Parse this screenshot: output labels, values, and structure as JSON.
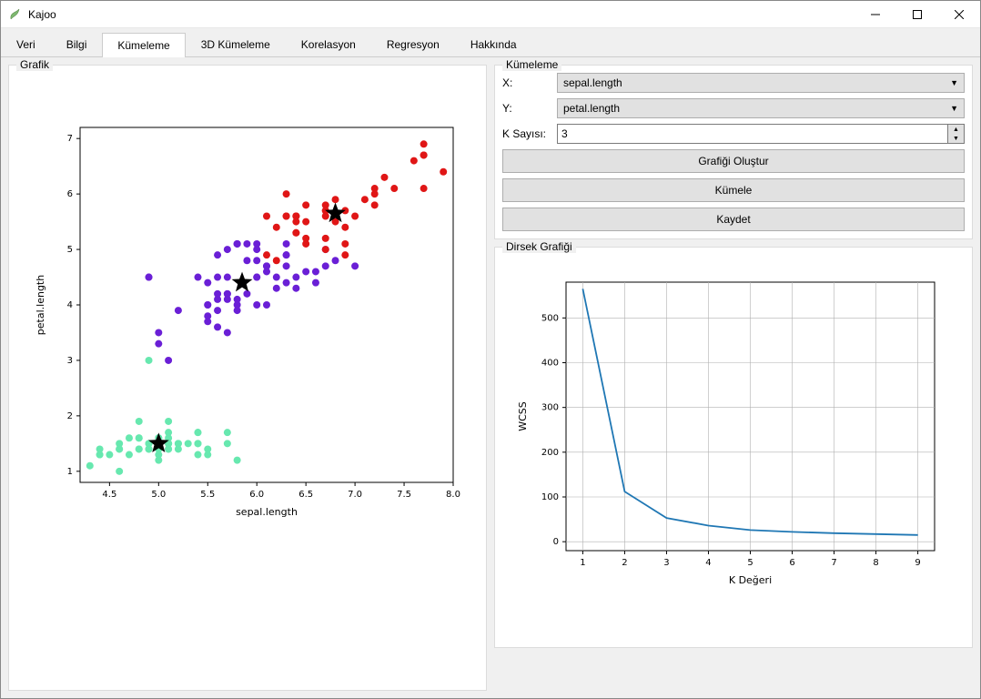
{
  "window": {
    "title": "Kajoo"
  },
  "tabs": [
    "Veri",
    "Bilgi",
    "Kümeleme",
    "3D Kümeleme",
    "Korelasyon",
    "Regresyon",
    "Hakkında"
  ],
  "active_tab": "Kümeleme",
  "panels": {
    "grafik": {
      "title": "Grafik"
    },
    "kumeleme": {
      "title": "Kümeleme",
      "labels": {
        "x": "X:",
        "y": "Y:",
        "k": "K Sayısı:"
      },
      "x_value": "sepal.length",
      "y_value": "petal.length",
      "k_value": "3",
      "buttons": {
        "create": "Grafiği Oluştur",
        "cluster": "Kümele",
        "save": "Kaydet"
      }
    },
    "dirsek": {
      "title": "Dirsek Grafiği"
    }
  },
  "scatter": {
    "type": "scatter",
    "xlabel": "sepal.length",
    "ylabel": "petal.length",
    "label_fontsize": 11,
    "tick_fontsize": 10,
    "xlim": [
      4.2,
      8.0
    ],
    "ylim": [
      0.8,
      7.2
    ],
    "xticks": [
      4.5,
      5.0,
      5.5,
      6.0,
      6.5,
      7.0,
      7.5,
      8.0
    ],
    "yticks": [
      1,
      2,
      3,
      4,
      5,
      6,
      7
    ],
    "background_color": "#ffffff",
    "axes_color": "#000000",
    "marker_size": 4,
    "clusters": [
      {
        "color": "#67e8af",
        "points": [
          [
            5.1,
            1.4
          ],
          [
            4.9,
            1.4
          ],
          [
            4.7,
            1.3
          ],
          [
            4.6,
            1.5
          ],
          [
            5.0,
            1.4
          ],
          [
            5.4,
            1.7
          ],
          [
            4.6,
            1.4
          ],
          [
            5.0,
            1.5
          ],
          [
            4.4,
            1.4
          ],
          [
            4.9,
            1.5
          ],
          [
            5.4,
            1.5
          ],
          [
            4.8,
            1.6
          ],
          [
            4.8,
            1.4
          ],
          [
            4.3,
            1.1
          ],
          [
            5.8,
            1.2
          ],
          [
            5.7,
            1.5
          ],
          [
            5.4,
            1.3
          ],
          [
            5.1,
            1.4
          ],
          [
            5.7,
            1.7
          ],
          [
            5.1,
            1.5
          ],
          [
            5.4,
            1.7
          ],
          [
            5.1,
            1.5
          ],
          [
            4.6,
            1.0
          ],
          [
            5.1,
            1.7
          ],
          [
            4.8,
            1.9
          ],
          [
            5.0,
            1.6
          ],
          [
            5.0,
            1.6
          ],
          [
            5.2,
            1.5
          ],
          [
            5.2,
            1.4
          ],
          [
            4.7,
            1.6
          ],
          [
            4.8,
            1.6
          ],
          [
            5.4,
            1.5
          ],
          [
            5.2,
            1.5
          ],
          [
            5.5,
            1.4
          ],
          [
            4.9,
            1.5
          ],
          [
            5.0,
            1.2
          ],
          [
            5.5,
            1.3
          ],
          [
            4.9,
            1.4
          ],
          [
            4.4,
            1.3
          ],
          [
            5.1,
            1.5
          ],
          [
            5.0,
            1.3
          ],
          [
            4.5,
            1.3
          ],
          [
            4.4,
            1.3
          ],
          [
            5.0,
            1.6
          ],
          [
            5.1,
            1.9
          ],
          [
            4.8,
            1.4
          ],
          [
            5.1,
            1.6
          ],
          [
            4.6,
            1.4
          ],
          [
            5.3,
            1.5
          ],
          [
            5.0,
            1.4
          ],
          [
            4.9,
            3.0
          ]
        ]
      },
      {
        "color": "#6a1fd6",
        "points": [
          [
            7.0,
            4.7
          ],
          [
            6.4,
            4.5
          ],
          [
            5.5,
            4.0
          ],
          [
            6.5,
            4.6
          ],
          [
            5.7,
            4.5
          ],
          [
            6.3,
            4.7
          ],
          [
            4.9,
            4.5
          ],
          [
            6.6,
            4.6
          ],
          [
            5.2,
            3.9
          ],
          [
            5.0,
            3.5
          ],
          [
            5.9,
            4.2
          ],
          [
            6.0,
            4.0
          ],
          [
            6.1,
            4.7
          ],
          [
            5.6,
            3.6
          ],
          [
            5.6,
            4.5
          ],
          [
            5.8,
            4.1
          ],
          [
            6.2,
            4.5
          ],
          [
            5.6,
            3.9
          ],
          [
            5.9,
            4.8
          ],
          [
            6.1,
            4.0
          ],
          [
            6.3,
            4.9
          ],
          [
            6.1,
            4.7
          ],
          [
            6.4,
            4.3
          ],
          [
            6.6,
            4.4
          ],
          [
            6.8,
            4.8
          ],
          [
            6.7,
            5.0
          ],
          [
            6.0,
            4.5
          ],
          [
            5.7,
            3.5
          ],
          [
            5.5,
            3.8
          ],
          [
            5.5,
            3.7
          ],
          [
            5.8,
            3.9
          ],
          [
            6.0,
            5.1
          ],
          [
            5.4,
            4.5
          ],
          [
            6.0,
            4.5
          ],
          [
            6.7,
            4.7
          ],
          [
            6.3,
            4.4
          ],
          [
            5.6,
            4.1
          ],
          [
            5.5,
            4.0
          ],
          [
            5.5,
            4.4
          ],
          [
            6.1,
            4.6
          ],
          [
            5.8,
            4.0
          ],
          [
            5.0,
            3.3
          ],
          [
            5.6,
            4.2
          ],
          [
            5.7,
            4.2
          ],
          [
            5.7,
            4.2
          ],
          [
            6.2,
            4.3
          ],
          [
            5.1,
            3.0
          ],
          [
            5.7,
            4.1
          ],
          [
            5.8,
            5.1
          ],
          [
            4.9,
            4.5
          ],
          [
            5.7,
            5.0
          ],
          [
            5.8,
            5.1
          ],
          [
            6.0,
            4.8
          ],
          [
            5.6,
            4.9
          ],
          [
            6.3,
            4.9
          ],
          [
            5.8,
            5.1
          ],
          [
            6.0,
            5.0
          ],
          [
            6.3,
            5.1
          ],
          [
            5.9,
            5.1
          ]
        ]
      },
      {
        "color": "#e01616",
        "points": [
          [
            6.3,
            6.0
          ],
          [
            7.1,
            5.9
          ],
          [
            6.5,
            5.8
          ],
          [
            7.6,
            6.6
          ],
          [
            7.3,
            6.3
          ],
          [
            6.7,
            5.8
          ],
          [
            7.2,
            6.1
          ],
          [
            6.5,
            5.1
          ],
          [
            6.4,
            5.3
          ],
          [
            6.8,
            5.5
          ],
          [
            6.4,
            5.6
          ],
          [
            6.5,
            5.5
          ],
          [
            7.7,
            6.7
          ],
          [
            7.7,
            6.9
          ],
          [
            6.9,
            5.7
          ],
          [
            7.7,
            6.7
          ],
          [
            6.7,
            5.7
          ],
          [
            7.2,
            6.0
          ],
          [
            6.2,
            4.8
          ],
          [
            6.1,
            4.9
          ],
          [
            6.4,
            5.6
          ],
          [
            7.2,
            5.8
          ],
          [
            7.4,
            6.1
          ],
          [
            7.9,
            6.4
          ],
          [
            6.4,
            5.6
          ],
          [
            6.1,
            5.6
          ],
          [
            7.7,
            6.1
          ],
          [
            6.3,
            5.6
          ],
          [
            6.4,
            5.5
          ],
          [
            6.9,
            5.4
          ],
          [
            6.7,
            5.6
          ],
          [
            6.9,
            5.1
          ],
          [
            6.8,
            5.9
          ],
          [
            6.7,
            5.7
          ],
          [
            6.7,
            5.2
          ],
          [
            6.5,
            5.2
          ],
          [
            6.2,
            5.4
          ],
          [
            6.9,
            4.9
          ],
          [
            7.0,
            5.6
          ],
          [
            6.7,
            5.0
          ],
          [
            6.4,
            5.3
          ],
          [
            6.3,
            5.6
          ]
        ]
      }
    ],
    "centroids": {
      "color": "#000000",
      "marker": "star",
      "size": 12,
      "points": [
        [
          5.0,
          1.5
        ],
        [
          5.85,
          4.4
        ],
        [
          6.8,
          5.65
        ]
      ]
    }
  },
  "elbow": {
    "type": "line",
    "xlabel": "K Değeri",
    "ylabel": "WCSS",
    "label_fontsize": 11,
    "tick_fontsize": 10,
    "xlim": [
      0.6,
      9.4
    ],
    "ylim": [
      -20,
      580
    ],
    "xticks": [
      1,
      2,
      3,
      4,
      5,
      6,
      7,
      8,
      9
    ],
    "yticks": [
      0,
      100,
      200,
      300,
      400,
      500
    ],
    "grid": true,
    "grid_color": "#b0b0b0",
    "background_color": "#ffffff",
    "axes_color": "#000000",
    "line_color": "#1f77b4",
    "line_width": 1.8,
    "x": [
      1,
      2,
      3,
      4,
      5,
      6,
      7,
      8,
      9
    ],
    "y": [
      565,
      112,
      53,
      36,
      26,
      22,
      19,
      17,
      15
    ]
  }
}
